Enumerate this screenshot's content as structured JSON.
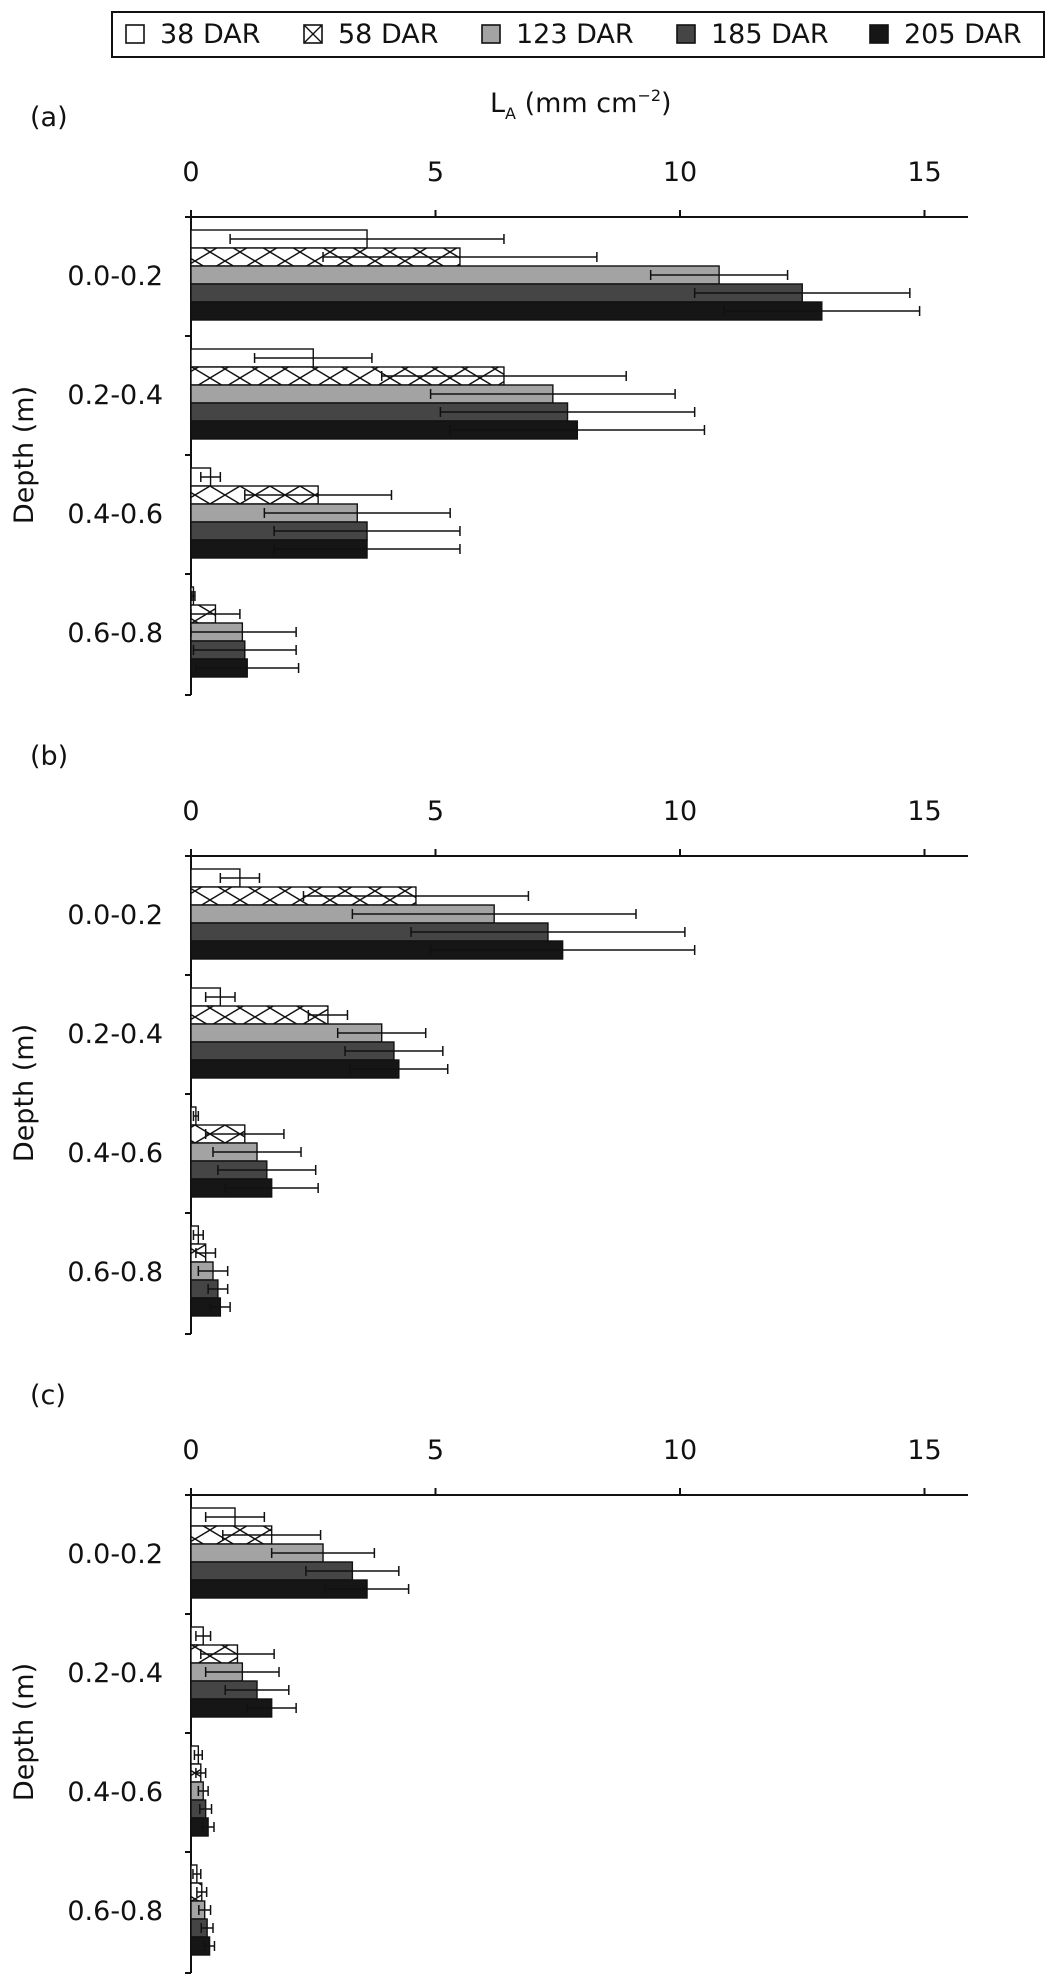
{
  "x_axis_label_main": "L",
  "x_axis_label_sub": "A",
  "x_axis_label_rest": " (mm cm",
  "x_axis_label_exp": "−2",
  "x_axis_label_close": ")",
  "y_axis_label": "Depth (m)",
  "colors": {
    "s38": "#ffffff",
    "s58": "#ffffff",
    "s123": "#a3a3a3",
    "s185": "#454545",
    "s205": "#161616",
    "axis": "#111111"
  },
  "chart_data": [
    {
      "type": "bar",
      "orientation": "horizontal",
      "panel_label": "(a)",
      "categories": [
        "0.0-0.2",
        "0.2-0.4",
        "0.4-0.6",
        "0.6-0.8"
      ],
      "xlim": [
        0,
        16
      ],
      "xticks": [
        0,
        5,
        10,
        15
      ],
      "series": [
        {
          "name": "38 DAR",
          "pattern": "open",
          "values": [
            3.6,
            2.5,
            0.4,
            0.05
          ],
          "errors": [
            2.8,
            1.2,
            0.2,
            0.03
          ]
        },
        {
          "name": "58 DAR",
          "pattern": "cross-hatch",
          "values": [
            5.5,
            6.4,
            2.6,
            0.5
          ],
          "errors": [
            2.8,
            2.5,
            1.5,
            0.5
          ]
        },
        {
          "name": "123 DAR",
          "pattern": "light-grey",
          "values": [
            10.8,
            7.4,
            3.4,
            1.05
          ],
          "errors": [
            1.4,
            2.5,
            1.9,
            1.1
          ]
        },
        {
          "name": "185 DAR",
          "pattern": "dark-grey",
          "values": [
            12.5,
            7.7,
            3.6,
            1.1
          ],
          "errors": [
            2.2,
            2.6,
            1.9,
            1.05
          ]
        },
        {
          "name": "205 DAR",
          "pattern": "black",
          "values": [
            12.9,
            7.9,
            3.6,
            1.15
          ],
          "errors": [
            2.0,
            2.6,
            1.9,
            1.05
          ]
        }
      ]
    },
    {
      "type": "bar",
      "orientation": "horizontal",
      "panel_label": "(b)",
      "categories": [
        "0.0-0.2",
        "0.2-0.4",
        "0.4-0.6",
        "0.6-0.8"
      ],
      "xlim": [
        0,
        16
      ],
      "xticks": [
        0,
        5,
        10,
        15
      ],
      "series": [
        {
          "name": "38 DAR",
          "pattern": "open",
          "values": [
            1.0,
            0.6,
            0.1,
            0.15
          ],
          "errors": [
            0.4,
            0.3,
            0.05,
            0.1
          ]
        },
        {
          "name": "58 DAR",
          "pattern": "cross-hatch",
          "values": [
            4.6,
            2.8,
            1.1,
            0.3
          ],
          "errors": [
            2.3,
            0.4,
            0.8,
            0.2
          ]
        },
        {
          "name": "123 DAR",
          "pattern": "light-grey",
          "values": [
            6.2,
            3.9,
            1.35,
            0.45
          ],
          "errors": [
            2.9,
            0.9,
            0.9,
            0.3
          ]
        },
        {
          "name": "185 DAR",
          "pattern": "dark-grey",
          "values": [
            7.3,
            4.15,
            1.55,
            0.55
          ],
          "errors": [
            2.8,
            1.0,
            1.0,
            0.2
          ]
        },
        {
          "name": "205 DAR",
          "pattern": "black",
          "values": [
            7.6,
            4.25,
            1.65,
            0.6
          ],
          "errors": [
            2.7,
            1.0,
            0.95,
            0.2
          ]
        }
      ]
    },
    {
      "type": "bar",
      "orientation": "horizontal",
      "panel_label": "(c)",
      "categories": [
        "0.0-0.2",
        "0.2-0.4",
        "0.4-0.6",
        "0.6-0.8"
      ],
      "xlim": [
        0,
        16
      ],
      "xticks": [
        0,
        5,
        10,
        15
      ],
      "series": [
        {
          "name": "38 DAR",
          "pattern": "open",
          "values": [
            0.9,
            0.25,
            0.15,
            0.12
          ],
          "errors": [
            0.6,
            0.15,
            0.08,
            0.08
          ]
        },
        {
          "name": "58 DAR",
          "pattern": "cross-hatch",
          "values": [
            1.65,
            0.95,
            0.2,
            0.22
          ],
          "errors": [
            1.0,
            0.75,
            0.1,
            0.1
          ]
        },
        {
          "name": "123 DAR",
          "pattern": "light-grey",
          "values": [
            2.7,
            1.05,
            0.25,
            0.28
          ],
          "errors": [
            1.05,
            0.75,
            0.1,
            0.12
          ]
        },
        {
          "name": "185 DAR",
          "pattern": "dark-grey",
          "values": [
            3.3,
            1.35,
            0.3,
            0.33
          ],
          "errors": [
            0.95,
            0.65,
            0.12,
            0.12
          ]
        },
        {
          "name": "205 DAR",
          "pattern": "black",
          "values": [
            3.6,
            1.65,
            0.35,
            0.38
          ],
          "errors": [
            0.85,
            0.5,
            0.12,
            0.1
          ]
        }
      ]
    }
  ]
}
